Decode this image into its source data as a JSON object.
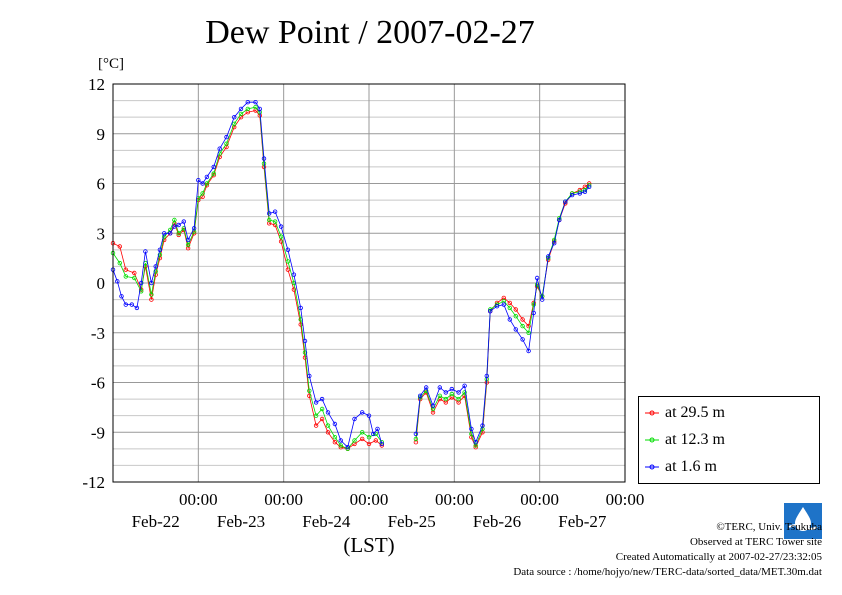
{
  "title": "Dew Point / 2007-02-27",
  "unit_label": "[°C]",
  "xlabel": "(LST)",
  "legend": [
    {
      "label": "at 29.5 m",
      "color": "#ff0000"
    },
    {
      "label": "at 12.3 m",
      "color": "#00dd00"
    },
    {
      "label": "at 1.6 m",
      "color": "#0000ff"
    }
  ],
  "credits": {
    "copyright": "©TERC, Univ. Tsukuba",
    "observed": "Observed at TERC Tower site",
    "created": "Created Automatically at 2007-02-27/23:32:05",
    "source": "Data source : /home/hojyo/new/TERC-data/sorted_data/MET.30m.dat"
  },
  "chart_data": {
    "type": "line",
    "title": "Dew Point / 2007-02-27",
    "xlabel": "(LST)",
    "ylabel": "[°C]",
    "ylim": [
      -12,
      12
    ],
    "xlim_days": [
      0,
      6
    ],
    "x_unit": "days since 2007-02-21 00:00 LST",
    "yticks": [
      12,
      9,
      6,
      3,
      0,
      -3,
      -6,
      -9,
      -12
    ],
    "xticks": [
      {
        "x": 1,
        "time": "00:00",
        "date": "Feb-22"
      },
      {
        "x": 2,
        "time": "00:00",
        "date": "Feb-23"
      },
      {
        "x": 3,
        "time": "00:00",
        "date": "Feb-24"
      },
      {
        "x": 4,
        "time": "00:00",
        "date": "Feb-25"
      },
      {
        "x": 5,
        "time": "00:00",
        "date": "Feb-26"
      },
      {
        "x": 6,
        "time": "00:00",
        "date": "Feb-27"
      }
    ],
    "grid": true,
    "legend_position": "bottom-right outside",
    "series": [
      {
        "name": "at 29.5 m",
        "color": "#ff0000",
        "points": [
          [
            0.0,
            2.4
          ],
          [
            0.08,
            2.2
          ],
          [
            0.15,
            0.8
          ],
          [
            0.25,
            0.6
          ],
          [
            0.33,
            -0.4
          ],
          [
            0.38,
            1.0
          ],
          [
            0.45,
            -1.0
          ],
          [
            0.5,
            0.5
          ],
          [
            0.55,
            1.5
          ],
          [
            0.6,
            2.6
          ],
          [
            0.67,
            3.0
          ],
          [
            0.72,
            3.6
          ],
          [
            0.77,
            2.9
          ],
          [
            0.83,
            3.2
          ],
          [
            0.88,
            2.1
          ],
          [
            0.95,
            3.0
          ],
          [
            1.0,
            5.0
          ],
          [
            1.05,
            5.2
          ],
          [
            1.1,
            5.9
          ],
          [
            1.18,
            6.5
          ],
          [
            1.25,
            7.6
          ],
          [
            1.33,
            8.2
          ],
          [
            1.42,
            9.4
          ],
          [
            1.5,
            10.0
          ],
          [
            1.58,
            10.3
          ],
          [
            1.67,
            10.4
          ],
          [
            1.72,
            10.1
          ],
          [
            1.77,
            7.0
          ],
          [
            1.83,
            3.6
          ],
          [
            1.9,
            3.5
          ],
          [
            1.97,
            2.5
          ],
          [
            2.05,
            0.8
          ],
          [
            2.12,
            -0.4
          ],
          [
            2.2,
            -2.5
          ],
          [
            2.25,
            -4.5
          ],
          [
            2.3,
            -6.8
          ],
          [
            2.38,
            -8.6
          ],
          [
            2.45,
            -8.2
          ],
          [
            2.52,
            -9.0
          ],
          [
            2.6,
            -9.6
          ],
          [
            2.67,
            -9.9
          ],
          [
            2.75,
            -10.0
          ],
          [
            2.83,
            -9.7
          ],
          [
            2.92,
            -9.4
          ],
          [
            3.0,
            -9.7
          ],
          [
            3.08,
            -9.5
          ],
          [
            3.15,
            -9.8
          ],
          [
            3.55,
            -9.6
          ],
          [
            3.6,
            -7.0
          ],
          [
            3.67,
            -6.6
          ],
          [
            3.75,
            -7.8
          ],
          [
            3.83,
            -7.0
          ],
          [
            3.9,
            -7.2
          ],
          [
            3.97,
            -6.9
          ],
          [
            4.05,
            -7.2
          ],
          [
            4.12,
            -6.8
          ],
          [
            4.2,
            -9.3
          ],
          [
            4.25,
            -9.9
          ],
          [
            4.33,
            -9.0
          ],
          [
            4.38,
            -6.0
          ],
          [
            4.42,
            -1.7
          ],
          [
            4.5,
            -1.2
          ],
          [
            4.58,
            -0.9
          ],
          [
            4.65,
            -1.2
          ],
          [
            4.72,
            -1.6
          ],
          [
            4.8,
            -2.2
          ],
          [
            4.87,
            -2.6
          ],
          [
            4.93,
            -1.2
          ],
          [
            4.97,
            -0.2
          ],
          [
            5.03,
            -0.8
          ],
          [
            5.1,
            1.4
          ],
          [
            5.17,
            2.5
          ],
          [
            5.23,
            3.8
          ],
          [
            5.3,
            4.8
          ],
          [
            5.38,
            5.4
          ],
          [
            5.47,
            5.6
          ],
          [
            5.53,
            5.8
          ],
          [
            5.58,
            6.0
          ]
        ]
      },
      {
        "name": "at 12.3 m",
        "color": "#00dd00",
        "points": [
          [
            0.0,
            1.8
          ],
          [
            0.08,
            1.2
          ],
          [
            0.15,
            0.4
          ],
          [
            0.25,
            0.3
          ],
          [
            0.33,
            -0.5
          ],
          [
            0.38,
            1.2
          ],
          [
            0.45,
            -0.7
          ],
          [
            0.5,
            0.7
          ],
          [
            0.55,
            1.7
          ],
          [
            0.6,
            2.8
          ],
          [
            0.67,
            3.2
          ],
          [
            0.72,
            3.8
          ],
          [
            0.77,
            3.0
          ],
          [
            0.83,
            3.3
          ],
          [
            0.88,
            2.3
          ],
          [
            0.95,
            3.1
          ],
          [
            1.0,
            5.1
          ],
          [
            1.05,
            5.4
          ],
          [
            1.1,
            6.0
          ],
          [
            1.18,
            6.6
          ],
          [
            1.25,
            7.8
          ],
          [
            1.33,
            8.4
          ],
          [
            1.42,
            9.6
          ],
          [
            1.5,
            10.2
          ],
          [
            1.58,
            10.5
          ],
          [
            1.67,
            10.6
          ],
          [
            1.72,
            10.3
          ],
          [
            1.77,
            7.2
          ],
          [
            1.83,
            3.8
          ],
          [
            1.9,
            3.7
          ],
          [
            1.97,
            2.8
          ],
          [
            2.05,
            1.3
          ],
          [
            2.12,
            0.0
          ],
          [
            2.2,
            -2.2
          ],
          [
            2.25,
            -4.2
          ],
          [
            2.3,
            -6.5
          ],
          [
            2.38,
            -8.0
          ],
          [
            2.45,
            -7.6
          ],
          [
            2.52,
            -8.6
          ],
          [
            2.6,
            -9.3
          ],
          [
            2.67,
            -9.8
          ],
          [
            2.75,
            -10.0
          ],
          [
            2.83,
            -9.5
          ],
          [
            2.92,
            -9.0
          ],
          [
            3.0,
            -9.3
          ],
          [
            3.08,
            -9.1
          ],
          [
            3.15,
            -9.6
          ],
          [
            3.55,
            -9.4
          ],
          [
            3.6,
            -6.9
          ],
          [
            3.67,
            -6.5
          ],
          [
            3.75,
            -7.6
          ],
          [
            3.83,
            -6.8
          ],
          [
            3.9,
            -7.0
          ],
          [
            3.97,
            -6.7
          ],
          [
            4.05,
            -7.0
          ],
          [
            4.12,
            -6.6
          ],
          [
            4.2,
            -9.1
          ],
          [
            4.25,
            -9.8
          ],
          [
            4.33,
            -8.8
          ],
          [
            4.38,
            -5.8
          ],
          [
            4.42,
            -1.6
          ],
          [
            4.5,
            -1.3
          ],
          [
            4.58,
            -1.1
          ],
          [
            4.65,
            -1.5
          ],
          [
            4.72,
            -2.0
          ],
          [
            4.8,
            -2.6
          ],
          [
            4.87,
            -3.0
          ],
          [
            4.93,
            -1.3
          ],
          [
            4.97,
            -0.1
          ],
          [
            5.03,
            -0.8
          ],
          [
            5.1,
            1.5
          ],
          [
            5.17,
            2.6
          ],
          [
            5.23,
            3.9
          ],
          [
            5.3,
            4.9
          ],
          [
            5.38,
            5.4
          ],
          [
            5.47,
            5.5
          ],
          [
            5.53,
            5.6
          ],
          [
            5.58,
            5.9
          ]
        ]
      },
      {
        "name": "at 1.6 m",
        "color": "#0000ff",
        "points": [
          [
            0.0,
            0.8
          ],
          [
            0.05,
            0.1
          ],
          [
            0.1,
            -0.8
          ],
          [
            0.15,
            -1.3
          ],
          [
            0.22,
            -1.3
          ],
          [
            0.28,
            -1.5
          ],
          [
            0.33,
            0.0
          ],
          [
            0.38,
            1.9
          ],
          [
            0.45,
            0.0
          ],
          [
            0.5,
            1.0
          ],
          [
            0.55,
            2.0
          ],
          [
            0.6,
            3.0
          ],
          [
            0.67,
            3.0
          ],
          [
            0.72,
            3.4
          ],
          [
            0.77,
            3.5
          ],
          [
            0.83,
            3.7
          ],
          [
            0.88,
            2.6
          ],
          [
            0.95,
            3.3
          ],
          [
            1.0,
            6.2
          ],
          [
            1.05,
            6.0
          ],
          [
            1.1,
            6.4
          ],
          [
            1.18,
            7.0
          ],
          [
            1.25,
            8.1
          ],
          [
            1.33,
            8.8
          ],
          [
            1.42,
            10.0
          ],
          [
            1.5,
            10.5
          ],
          [
            1.58,
            10.9
          ],
          [
            1.67,
            10.9
          ],
          [
            1.72,
            10.5
          ],
          [
            1.77,
            7.5
          ],
          [
            1.83,
            4.2
          ],
          [
            1.9,
            4.3
          ],
          [
            1.97,
            3.4
          ],
          [
            2.05,
            2.0
          ],
          [
            2.12,
            0.5
          ],
          [
            2.2,
            -1.5
          ],
          [
            2.25,
            -3.5
          ],
          [
            2.3,
            -5.6
          ],
          [
            2.38,
            -7.2
          ],
          [
            2.45,
            -7.0
          ],
          [
            2.52,
            -7.8
          ],
          [
            2.6,
            -8.5
          ],
          [
            2.67,
            -9.5
          ],
          [
            2.75,
            -9.9
          ],
          [
            2.83,
            -8.2
          ],
          [
            2.92,
            -7.8
          ],
          [
            3.0,
            -8.0
          ],
          [
            3.05,
            -9.1
          ],
          [
            3.1,
            -8.8
          ],
          [
            3.15,
            -9.7
          ],
          [
            3.55,
            -9.1
          ],
          [
            3.6,
            -6.8
          ],
          [
            3.67,
            -6.3
          ],
          [
            3.75,
            -7.4
          ],
          [
            3.83,
            -6.3
          ],
          [
            3.9,
            -6.6
          ],
          [
            3.97,
            -6.4
          ],
          [
            4.05,
            -6.6
          ],
          [
            4.12,
            -6.2
          ],
          [
            4.2,
            -8.8
          ],
          [
            4.25,
            -9.6
          ],
          [
            4.33,
            -8.6
          ],
          [
            4.38,
            -5.6
          ],
          [
            4.42,
            -1.7
          ],
          [
            4.5,
            -1.4
          ],
          [
            4.58,
            -1.3
          ],
          [
            4.65,
            -2.2
          ],
          [
            4.72,
            -2.8
          ],
          [
            4.8,
            -3.4
          ],
          [
            4.87,
            -4.1
          ],
          [
            4.93,
            -1.8
          ],
          [
            4.97,
            0.3
          ],
          [
            5.03,
            -1.0
          ],
          [
            5.1,
            1.6
          ],
          [
            5.17,
            2.4
          ],
          [
            5.23,
            3.8
          ],
          [
            5.3,
            4.9
          ],
          [
            5.38,
            5.3
          ],
          [
            5.47,
            5.4
          ],
          [
            5.53,
            5.5
          ],
          [
            5.58,
            5.8
          ]
        ]
      }
    ]
  }
}
